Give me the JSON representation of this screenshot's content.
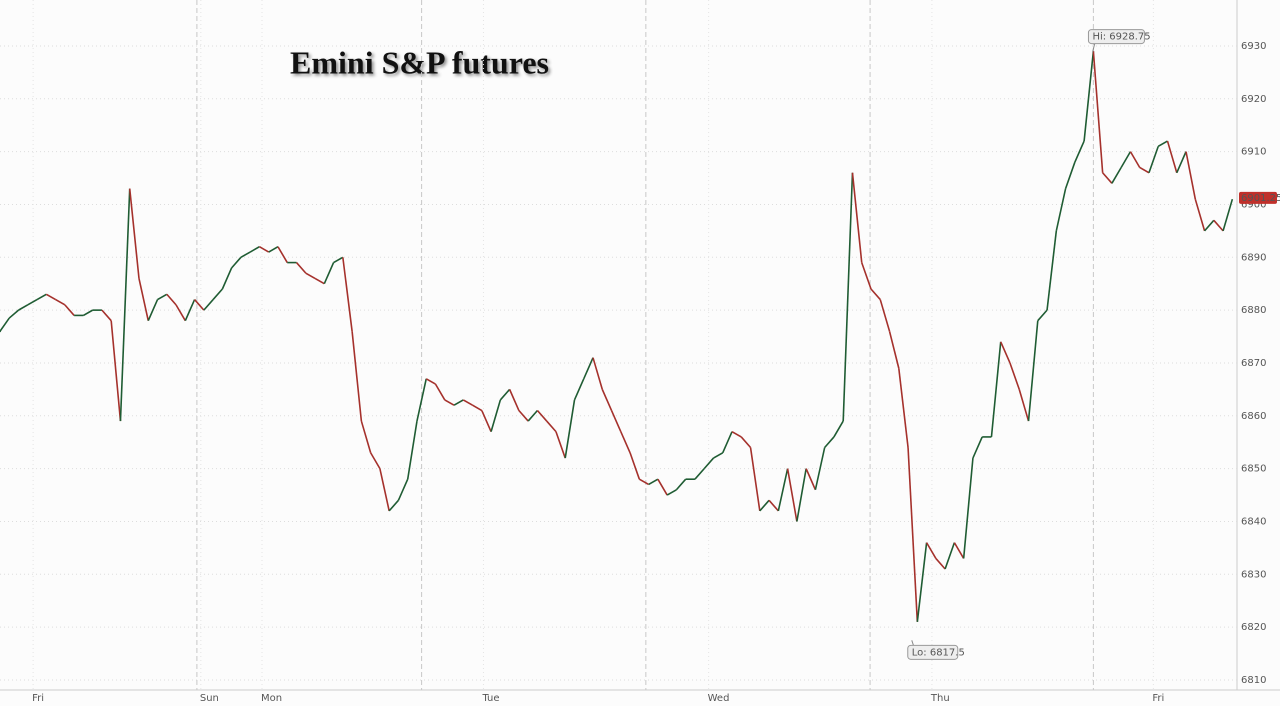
{
  "chart_data": {
    "type": "line",
    "title": "Emini S&P futures",
    "x": [
      0,
      1,
      2,
      3,
      4,
      5,
      6,
      7,
      8,
      9,
      10,
      11,
      12,
      13,
      14,
      15,
      16,
      17,
      18,
      19,
      20,
      21,
      22,
      23,
      24,
      25,
      26,
      27,
      28,
      29,
      30,
      31,
      32,
      33,
      34,
      35,
      36,
      37,
      38,
      39,
      40,
      41,
      42,
      43,
      44,
      45,
      46,
      47,
      48,
      49,
      50,
      51,
      52,
      53,
      54,
      55,
      56,
      57,
      58,
      59,
      60,
      61,
      62,
      63,
      64,
      65,
      66,
      67,
      68,
      69,
      70,
      71,
      72,
      73,
      74,
      75,
      76,
      77,
      78,
      79,
      80,
      81,
      82,
      83,
      84,
      85,
      86,
      87,
      88,
      89,
      90,
      91,
      92,
      93,
      94,
      95,
      96,
      97,
      98,
      99,
      100,
      101,
      102,
      103,
      104,
      105,
      106,
      107,
      108,
      109,
      110,
      111,
      112,
      113,
      114,
      115,
      116,
      117,
      118,
      119,
      120,
      121,
      122,
      123,
      124,
      125,
      126,
      127,
      128,
      129,
      130,
      131,
      132,
      133
    ],
    "values": [
      6876,
      6878.5,
      6880,
      6881,
      6882,
      6883,
      6882,
      6881,
      6879,
      6879,
      6880,
      6880,
      6878,
      6859,
      6903,
      6886,
      6878,
      6882,
      6883,
      6881,
      6878,
      6882,
      6880,
      6882,
      6884,
      6888,
      6890,
      6891,
      6892,
      6891,
      6892,
      6889,
      6889,
      6887,
      6886,
      6885,
      6889,
      6890,
      6876,
      6859,
      6853,
      6850,
      6842,
      6844,
      6848,
      6859,
      6867,
      6866,
      6863,
      6862,
      6863,
      6862,
      6861,
      6857,
      6863,
      6865,
      6861,
      6859,
      6861,
      6859,
      6857,
      6852,
      6863,
      6867,
      6871,
      6865,
      6861,
      6857,
      6853,
      6848,
      6847,
      6848,
      6845,
      6846,
      6848,
      6848,
      6850,
      6852,
      6853,
      6857,
      6856,
      6854,
      6842,
      6844,
      6842,
      6850,
      6840,
      6850,
      6846,
      6854,
      6856,
      6859,
      6906,
      6889,
      6884,
      6882,
      6876,
      6869,
      6854,
      6821,
      6836,
      6833,
      6831,
      6836,
      6833,
      6852,
      6856,
      6856,
      6874,
      6870,
      6865,
      6859,
      6878,
      6880,
      6895,
      6903,
      6908,
      6912,
      6929,
      6906,
      6904,
      6907,
      6910,
      6907,
      6906,
      6911,
      6912,
      6906,
      6910,
      6901,
      6895,
      6897,
      6895,
      6901
    ],
    "up_color": "#1f5c33",
    "down_color": "#a5312c",
    "xlim": [
      0,
      133.5
    ],
    "xticks": [
      {
        "value": 3.9,
        "label": "Fri"
      },
      {
        "value": 22,
        "label": "Sun"
      },
      {
        "value": 28.6,
        "label": "Mon"
      },
      {
        "value": 52.5,
        "label": "Tue"
      },
      {
        "value": 76.8,
        "label": "Wed"
      },
      {
        "value": 100.9,
        "label": "Thu"
      },
      {
        "value": 124.8,
        "label": "Fri"
      }
    ],
    "session_lines": [
      21.25,
      45.5,
      69.7,
      93.9,
      118
    ],
    "ylim": [
      6808.1,
      6938.7
    ],
    "yticks": [
      6810,
      6820,
      6830,
      6840,
      6850,
      6860,
      6870,
      6880,
      6890,
      6900,
      6910,
      6920,
      6930
    ],
    "grid": true,
    "annotations": [
      {
        "label": "Hi: 6928.75",
        "value": 6928.75,
        "x": 117.9
      },
      {
        "label": "Lo: 6817.5",
        "value": 6817.5,
        "x": 98.4
      }
    ],
    "last_price": {
      "label": "6901.25",
      "value": 6901.25,
      "color": "#c0302b"
    }
  }
}
